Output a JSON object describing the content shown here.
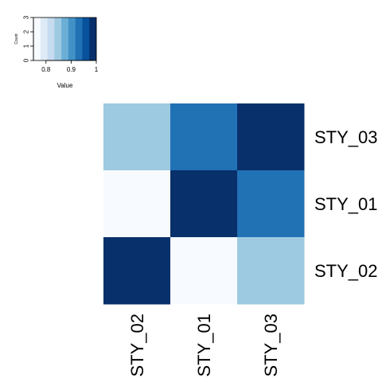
{
  "chart_data": {
    "type": "heatmap",
    "title": "",
    "rows": [
      "STY_03",
      "STY_01",
      "STY_02"
    ],
    "columns": [
      "STY_02",
      "STY_01",
      "STY_03"
    ],
    "values": [
      [
        0.84,
        0.94,
        1.0
      ],
      [
        0.75,
        1.0,
        0.94
      ],
      [
        1.0,
        0.75,
        0.84
      ]
    ],
    "color_scale": {
      "min": 0.75,
      "max": 1.0,
      "colors": [
        "#F7FBFF",
        "#DEEBF7",
        "#C6DBEF",
        "#9ECAE1",
        "#6BAED6",
        "#4292C6",
        "#2171B5",
        "#08519C",
        "#08306B"
      ]
    },
    "color_key": {
      "xlabel": "Value",
      "ylabel": "Count",
      "xticks": [
        "0.8",
        "0.9",
        "1"
      ],
      "xtick_values": [
        0.8,
        0.9,
        1.0
      ],
      "yticks": [
        "0",
        "1",
        "2",
        "3"
      ],
      "ytick_values": [
        0,
        1,
        2,
        3
      ]
    }
  }
}
